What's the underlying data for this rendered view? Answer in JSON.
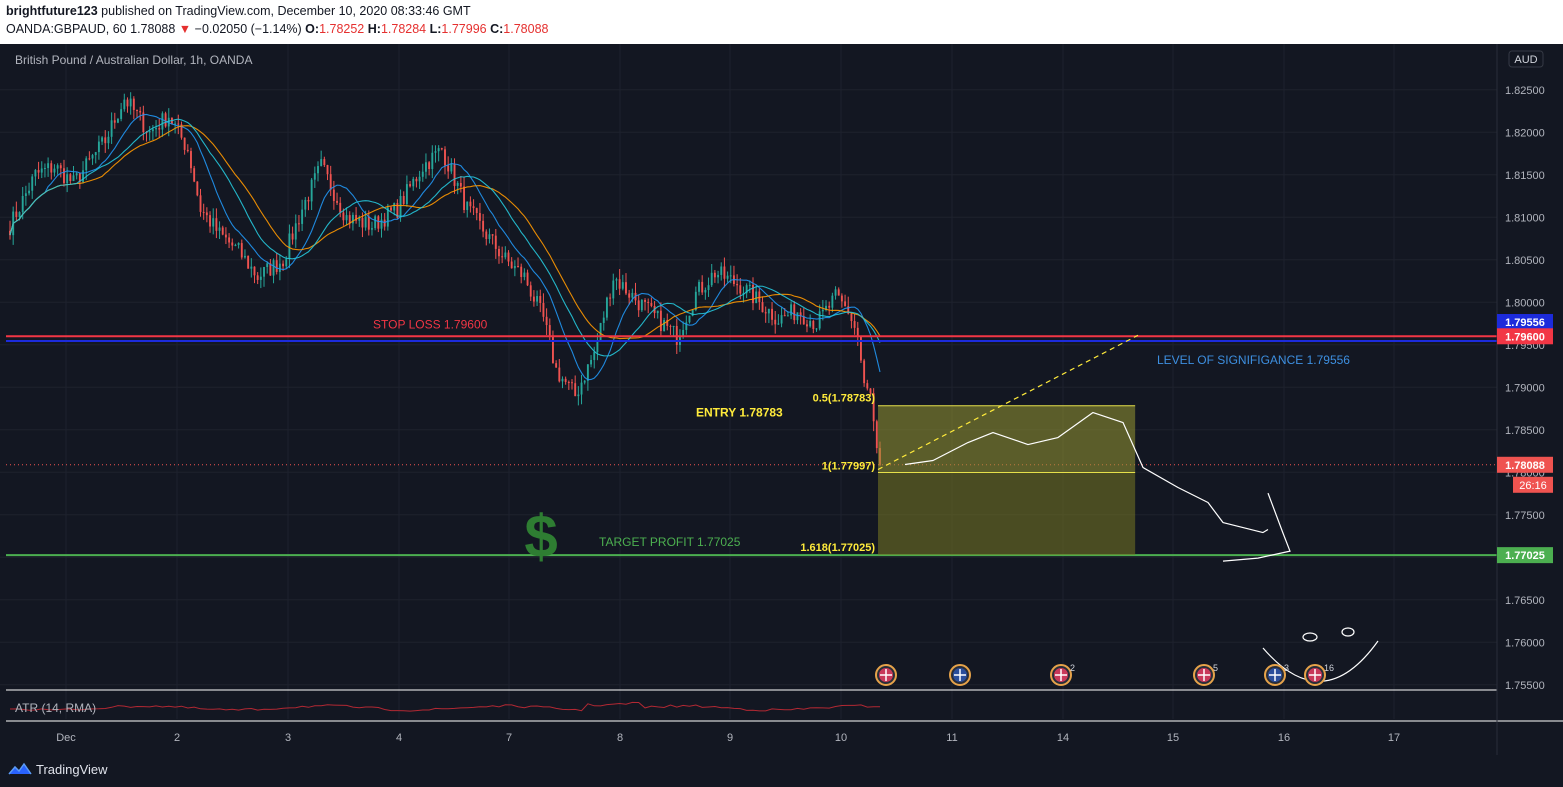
{
  "header": {
    "publisher": "brightfuture123",
    "published_text": "published on TradingView.com, December 10, 2020 08:33:46 GMT",
    "symbol": "OANDA:GBPAUD, 60",
    "last": "1.78088",
    "change_arrow": "▼",
    "change": "−0.02050 (−1.14%)",
    "o_label": "O:",
    "o": "1.78252",
    "h_label": "H:",
    "h": "1.78284",
    "l_label": "L:",
    "l": "1.77996",
    "c_label": "C:",
    "c": "1.78088"
  },
  "chart_title": "British Pound / Australian Dollar, 1h, OANDA",
  "currency_badge": "AUD",
  "indicator_label": "ATR (14, RMA)",
  "footer": {
    "brand": "TradingView",
    "logo_icon": "tradingview-logo-icon"
  },
  "colors": {
    "background": "#131722",
    "up_candle": "#26a69a",
    "down_candle": "#ef5350",
    "stop_loss": "#f23645",
    "significance": "#1c2bdb",
    "target": "#4caf50",
    "entry": "#ffeb3b",
    "ma_blue": "#2196f3",
    "ma_orange": "#ff9800"
  },
  "chart_data": {
    "type": "candlestick",
    "symbol": "GBPAUD",
    "ylim": [
      1.7545,
      1.8298
    ],
    "y_ticks": [
      "1.82500",
      "1.82000",
      "1.81500",
      "1.81000",
      "1.80500",
      "1.80000",
      "1.79500",
      "1.79000",
      "1.78500",
      "1.78000",
      "1.77500",
      "1.77000",
      "1.76500",
      "1.76000",
      "1.75500"
    ],
    "x_ticks": [
      "Dec",
      "2",
      "3",
      "4",
      "7",
      "8",
      "9",
      "10",
      "11",
      "14",
      "15",
      "16",
      "17"
    ],
    "price_path": [
      {
        "i": 0,
        "p": 1.809
      },
      {
        "i": 8,
        "p": 1.815
      },
      {
        "i": 14,
        "p": 1.816
      },
      {
        "i": 20,
        "p": 1.814
      },
      {
        "i": 30,
        "p": 1.819
      },
      {
        "i": 36,
        "p": 1.824
      },
      {
        "i": 44,
        "p": 1.82
      },
      {
        "i": 50,
        "p": 1.822
      },
      {
        "i": 56,
        "p": 1.818
      },
      {
        "i": 60,
        "p": 1.811
      },
      {
        "i": 66,
        "p": 1.808
      },
      {
        "i": 72,
        "p": 1.806
      },
      {
        "i": 78,
        "p": 1.803
      },
      {
        "i": 86,
        "p": 1.805
      },
      {
        "i": 92,
        "p": 1.811
      },
      {
        "i": 98,
        "p": 1.816
      },
      {
        "i": 106,
        "p": 1.81
      },
      {
        "i": 114,
        "p": 1.809
      },
      {
        "i": 122,
        "p": 1.811
      },
      {
        "i": 130,
        "p": 1.816
      },
      {
        "i": 136,
        "p": 1.818
      },
      {
        "i": 144,
        "p": 1.811
      },
      {
        "i": 150,
        "p": 1.808
      },
      {
        "i": 156,
        "p": 1.805
      },
      {
        "i": 162,
        "p": 1.803
      },
      {
        "i": 168,
        "p": 1.798
      },
      {
        "i": 172,
        "p": 1.792
      },
      {
        "i": 178,
        "p": 1.789
      },
      {
        "i": 184,
        "p": 1.794
      },
      {
        "i": 190,
        "p": 1.803
      },
      {
        "i": 198,
        "p": 1.8
      },
      {
        "i": 204,
        "p": 1.798
      },
      {
        "i": 210,
        "p": 1.796
      },
      {
        "i": 216,
        "p": 1.801
      },
      {
        "i": 222,
        "p": 1.8035
      },
      {
        "i": 230,
        "p": 1.802
      },
      {
        "i": 236,
        "p": 1.8
      },
      {
        "i": 242,
        "p": 1.798
      },
      {
        "i": 248,
        "p": 1.799
      },
      {
        "i": 254,
        "p": 1.7975
      },
      {
        "i": 260,
        "p": 1.8005
      },
      {
        "i": 264,
        "p": 1.799
      },
      {
        "i": 267,
        "p": 1.796
      },
      {
        "i": 269,
        "p": 1.79
      },
      {
        "i": 271,
        "p": 1.789
      },
      {
        "i": 273,
        "p": 1.782
      },
      {
        "i": 274,
        "p": 1.7809
      }
    ],
    "n_candles": 275,
    "last_price": 1.78088,
    "levels": {
      "stop_loss": {
        "label": "STOP LOSS 1.79600",
        "value": 1.796
      },
      "significance": {
        "label": "LEVEL OF SIGNIFIGANCE 1.79556",
        "value": 1.79556
      },
      "entry": {
        "label": "ENTRY 1.78783",
        "value": 1.78783
      },
      "target": {
        "label": "TARGET PROFIT 1.77025",
        "value": 1.77025
      }
    },
    "fib_labels": [
      "0.5(1.78783)",
      "1(1.77997)",
      "1.618(1.77025)"
    ],
    "price_badges": [
      "1.79556",
      "1.79600",
      "1.78088",
      "1.77025"
    ],
    "countdown": "26:16",
    "events": [
      {
        "icon": "uk-flag-icon",
        "count": ""
      },
      {
        "icon": "au-flag-icon",
        "count": ""
      },
      {
        "icon": "uk-flag-icon",
        "count": "2"
      },
      {
        "icon": "uk-flag-icon",
        "count": "5"
      },
      {
        "icon": "au-flag-icon",
        "count": "3"
      },
      {
        "icon": "uk-flag-icon",
        "count": "16"
      }
    ],
    "dollar_sign": "$"
  }
}
